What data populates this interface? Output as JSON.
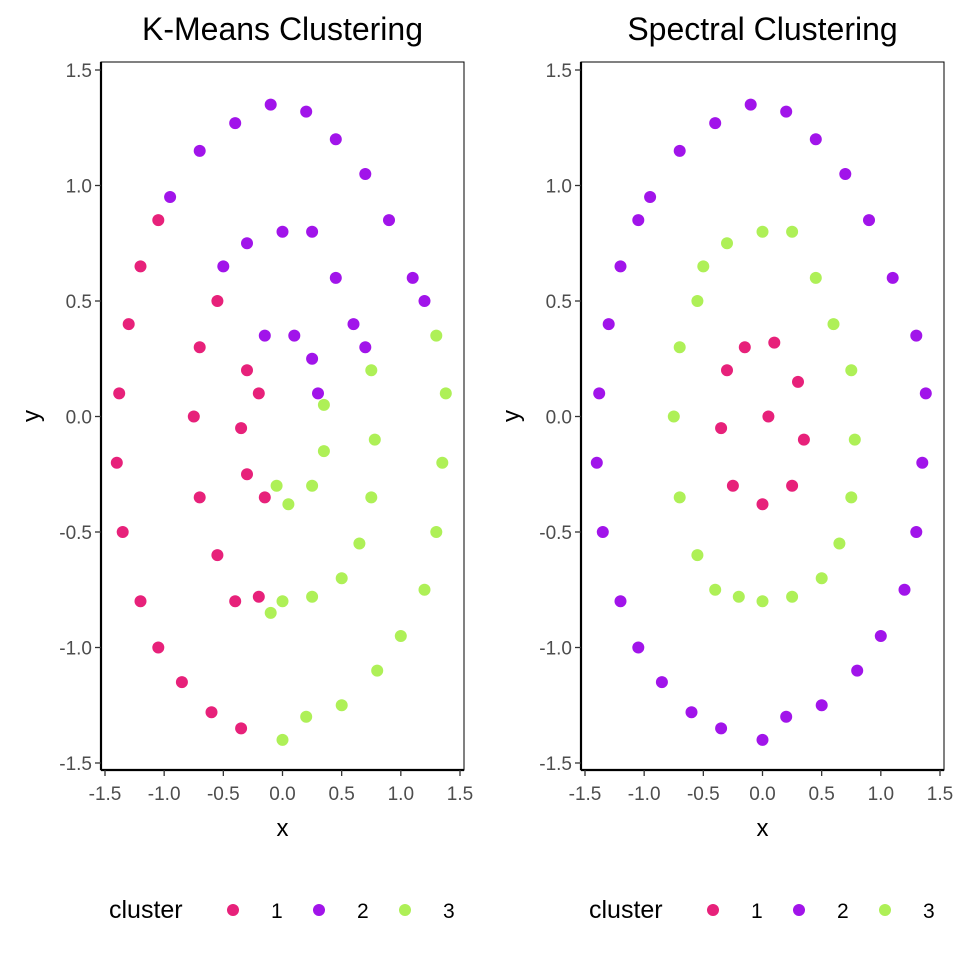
{
  "colors": {
    "1": "#E7217A",
    "2": "#A114EA",
    "3": "#AEF057",
    "axis": "#000000",
    "tick_text": "#4D4D4D"
  },
  "legend": {
    "title": "cluster",
    "keys": [
      "1",
      "2",
      "3"
    ],
    "position": "bottom"
  },
  "chart_data": [
    {
      "type": "scatter",
      "title": "K-Means Clustering",
      "xlabel": "x",
      "ylabel": "y",
      "xlim": [
        -1.5,
        1.5
      ],
      "ylim": [
        -1.5,
        1.5
      ],
      "xticks": [
        "-1.5",
        "-1.0",
        "-0.5",
        "0.0",
        "0.5",
        "1.0",
        "1.5"
      ],
      "yticks": [
        "-1.5",
        "-1.0",
        "-0.5",
        "0.0",
        "0.5",
        "1.0",
        "1.5"
      ],
      "grid": false,
      "series": [
        {
          "name": "1",
          "values": [
            [
              -1.3,
              0.4
            ],
            [
              -1.38,
              0.1
            ],
            [
              -1.4,
              -0.2
            ],
            [
              -1.35,
              -0.5
            ],
            [
              -1.2,
              -0.8
            ],
            [
              -1.05,
              -1.0
            ],
            [
              -0.85,
              -1.15
            ],
            [
              -0.6,
              -1.28
            ],
            [
              -0.35,
              -1.35
            ],
            [
              -1.2,
              0.65
            ],
            [
              -1.05,
              0.85
            ],
            [
              -0.55,
              0.5
            ],
            [
              -0.7,
              0.3
            ],
            [
              -0.75,
              0.0
            ],
            [
              -0.7,
              -0.35
            ],
            [
              -0.55,
              -0.6
            ],
            [
              -0.4,
              -0.8
            ],
            [
              -0.2,
              -0.78
            ],
            [
              -0.3,
              0.2
            ],
            [
              -0.35,
              -0.05
            ],
            [
              -0.3,
              -0.25
            ],
            [
              -0.15,
              -0.35
            ],
            [
              -0.2,
              0.1
            ]
          ]
        },
        {
          "name": "2",
          "values": [
            [
              -0.95,
              0.95
            ],
            [
              -0.7,
              1.15
            ],
            [
              -0.4,
              1.27
            ],
            [
              -0.1,
              1.35
            ],
            [
              0.2,
              1.32
            ],
            [
              0.45,
              1.2
            ],
            [
              0.7,
              1.05
            ],
            [
              0.9,
              0.85
            ],
            [
              1.1,
              0.6
            ],
            [
              1.2,
              0.5
            ],
            [
              -0.5,
              0.65
            ],
            [
              -0.3,
              0.75
            ],
            [
              0.0,
              0.8
            ],
            [
              0.25,
              0.8
            ],
            [
              0.45,
              0.6
            ],
            [
              0.6,
              0.4
            ],
            [
              0.7,
              0.3
            ],
            [
              -0.15,
              0.35
            ],
            [
              0.1,
              0.35
            ],
            [
              0.25,
              0.25
            ],
            [
              0.3,
              0.1
            ]
          ]
        },
        {
          "name": "3",
          "values": [
            [
              1.3,
              0.35
            ],
            [
              1.38,
              0.1
            ],
            [
              1.35,
              -0.2
            ],
            [
              1.3,
              -0.5
            ],
            [
              1.2,
              -0.75
            ],
            [
              1.0,
              -0.95
            ],
            [
              0.8,
              -1.1
            ],
            [
              0.5,
              -1.25
            ],
            [
              0.2,
              -1.3
            ],
            [
              0.0,
              -1.4
            ],
            [
              0.75,
              0.2
            ],
            [
              0.78,
              -0.1
            ],
            [
              0.75,
              -0.35
            ],
            [
              0.65,
              -0.55
            ],
            [
              0.5,
              -0.7
            ],
            [
              0.25,
              -0.78
            ],
            [
              0.0,
              -0.8
            ],
            [
              -0.1,
              -0.85
            ],
            [
              0.35,
              0.05
            ],
            [
              0.35,
              -0.15
            ],
            [
              0.25,
              -0.3
            ],
            [
              0.05,
              -0.38
            ],
            [
              -0.05,
              -0.3
            ]
          ]
        }
      ]
    },
    {
      "type": "scatter",
      "title": "Spectral Clustering",
      "xlabel": "x",
      "ylabel": "y",
      "xlim": [
        -1.5,
        1.5
      ],
      "ylim": [
        -1.5,
        1.5
      ],
      "xticks": [
        "-1.5",
        "-1.0",
        "-0.5",
        "0.0",
        "0.5",
        "1.0",
        "1.5"
      ],
      "yticks": [
        "-1.5",
        "-1.0",
        "-0.5",
        "0.0",
        "0.5",
        "1.0",
        "1.5"
      ],
      "grid": false,
      "series": [
        {
          "name": "1",
          "values": [
            [
              -0.15,
              0.3
            ],
            [
              0.1,
              0.32
            ],
            [
              0.3,
              0.15
            ],
            [
              0.35,
              -0.1
            ],
            [
              0.25,
              -0.3
            ],
            [
              0.0,
              -0.38
            ],
            [
              -0.25,
              -0.3
            ],
            [
              -0.35,
              -0.05
            ],
            [
              -0.3,
              0.2
            ],
            [
              0.05,
              0.0
            ]
          ]
        },
        {
          "name": "2",
          "values": [
            [
              -1.3,
              0.4
            ],
            [
              -1.38,
              0.1
            ],
            [
              -1.4,
              -0.2
            ],
            [
              -1.35,
              -0.5
            ],
            [
              -1.2,
              -0.8
            ],
            [
              -1.05,
              -1.0
            ],
            [
              -0.85,
              -1.15
            ],
            [
              -0.6,
              -1.28
            ],
            [
              -0.35,
              -1.35
            ],
            [
              -1.2,
              0.65
            ],
            [
              -1.05,
              0.85
            ],
            [
              -0.95,
              0.95
            ],
            [
              -0.7,
              1.15
            ],
            [
              -0.4,
              1.27
            ],
            [
              -0.1,
              1.35
            ],
            [
              0.2,
              1.32
            ],
            [
              0.45,
              1.2
            ],
            [
              0.7,
              1.05
            ],
            [
              0.9,
              0.85
            ],
            [
              1.1,
              0.6
            ],
            [
              1.3,
              0.35
            ],
            [
              1.38,
              0.1
            ],
            [
              1.35,
              -0.2
            ],
            [
              1.3,
              -0.5
            ],
            [
              1.2,
              -0.75
            ],
            [
              1.0,
              -0.95
            ],
            [
              0.8,
              -1.1
            ],
            [
              0.5,
              -1.25
            ],
            [
              0.2,
              -1.3
            ],
            [
              0.0,
              -1.4
            ]
          ]
        },
        {
          "name": "3",
          "values": [
            [
              -0.5,
              0.65
            ],
            [
              -0.3,
              0.75
            ],
            [
              0.0,
              0.8
            ],
            [
              0.25,
              0.8
            ],
            [
              0.45,
              0.6
            ],
            [
              0.6,
              0.4
            ],
            [
              0.75,
              0.2
            ],
            [
              0.78,
              -0.1
            ],
            [
              0.75,
              -0.35
            ],
            [
              0.65,
              -0.55
            ],
            [
              0.5,
              -0.7
            ],
            [
              0.25,
              -0.78
            ],
            [
              0.0,
              -0.8
            ],
            [
              -0.2,
              -0.78
            ],
            [
              -0.4,
              -0.75
            ],
            [
              -0.55,
              -0.6
            ],
            [
              -0.7,
              -0.35
            ],
            [
              -0.75,
              0.0
            ],
            [
              -0.7,
              0.3
            ],
            [
              -0.55,
              0.5
            ]
          ]
        }
      ]
    }
  ]
}
